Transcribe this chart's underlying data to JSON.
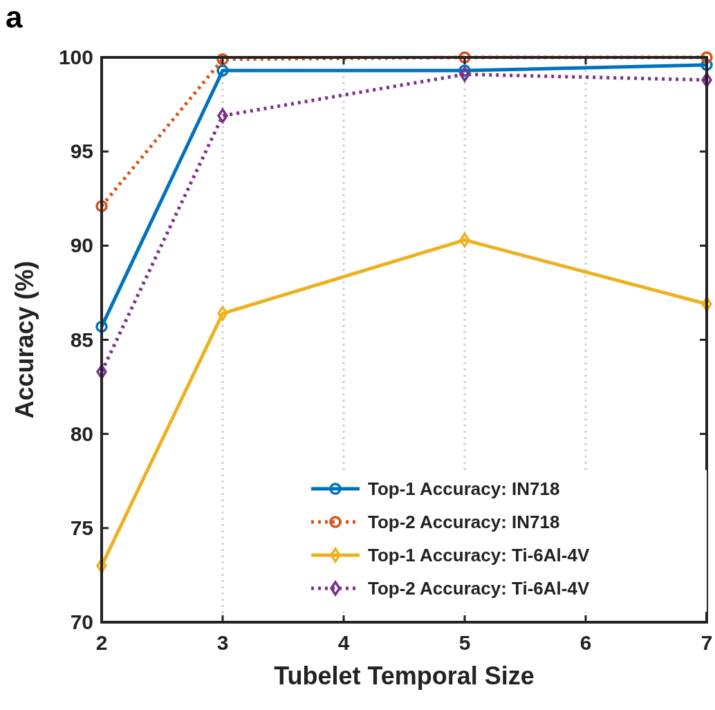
{
  "chart_data": {
    "type": "line",
    "xlabel": "Tubelet Temporal Size",
    "ylabel": "Accuracy (%)",
    "annotations": [
      "a"
    ],
    "x": [
      2,
      3,
      5,
      7
    ],
    "xlim": [
      2,
      7
    ],
    "xticks": [
      2,
      3,
      4,
      5,
      6,
      7
    ],
    "ylim": [
      70,
      100
    ],
    "yticks": [
      70,
      75,
      80,
      85,
      90,
      95,
      100
    ],
    "grid": "x",
    "legend": "bottom right",
    "series": [
      {
        "name": "Top-1 Accuracy: IN718",
        "color": "#0072bd",
        "values": [
          85.7,
          99.3,
          99.3,
          99.6
        ],
        "marker": "circle",
        "line_style": "solid"
      },
      {
        "name": "Top-2 Accuracy: IN718",
        "color": "#d95319",
        "values": [
          92.1,
          99.9,
          100,
          100
        ],
        "marker": "circle",
        "line_style": "dotted"
      },
      {
        "name": "Top-1 Accuracy: Ti-6Al-4V",
        "color": "#edb120",
        "values": [
          73.0,
          86.4,
          90.3,
          86.9
        ],
        "marker": "diamond",
        "line_style": "solid"
      },
      {
        "name": "Top-2 Accuracy: Ti-6Al-4V",
        "color": "#7e2f8e",
        "values": [
          83.3,
          96.9,
          99.1,
          98.8
        ],
        "marker": "diamond",
        "line_style": "dotted"
      }
    ]
  }
}
